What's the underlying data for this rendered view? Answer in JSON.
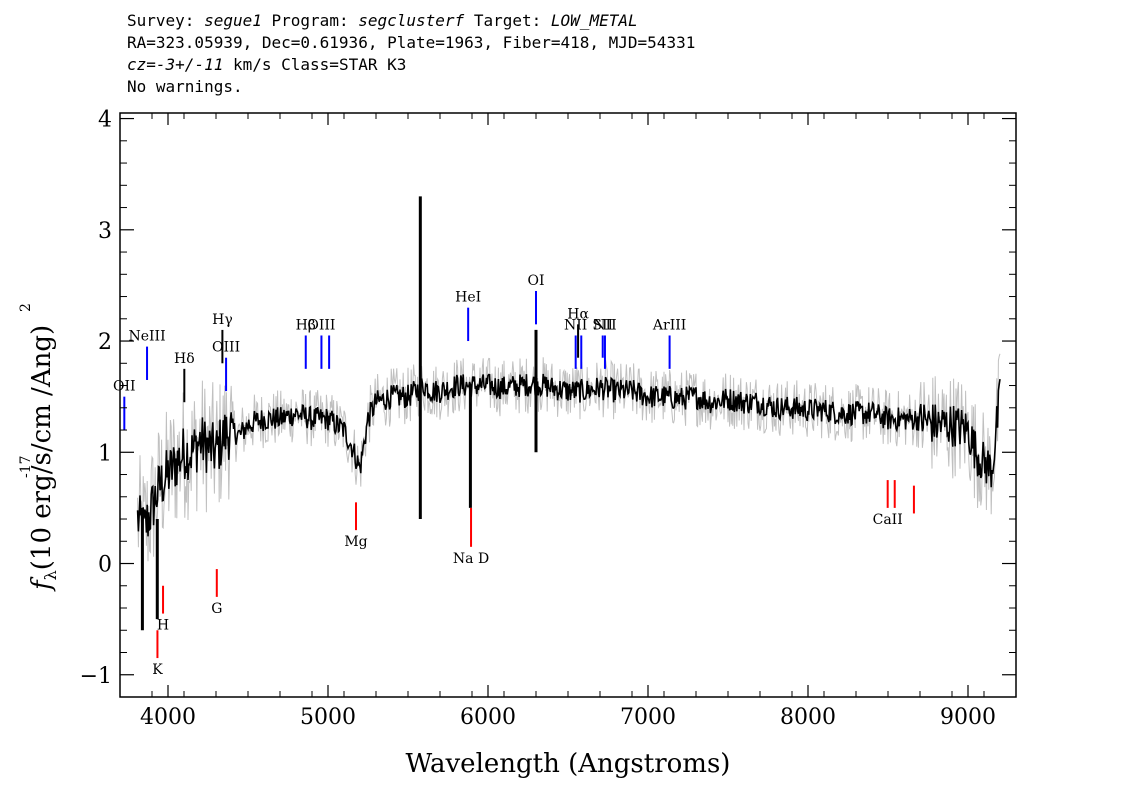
{
  "header": {
    "survey_label": "Survey:",
    "survey": "segue1",
    "program_label": "Program:",
    "program": "segclusterf",
    "target_label": "Target:",
    "target": "LOW_METAL",
    "line2": "RA=323.05939, Dec=0.61936, Plate=1963, Fiber=418, MJD=54331",
    "cz_label": "cz=",
    "cz_value": "-3+/-11",
    "cz_rest": " km/s Class=STAR K3",
    "warnings": "No warnings."
  },
  "chart_data": {
    "type": "line",
    "xlabel": "Wavelength (Angstroms)",
    "ylabel": "(10  erg/s/cm /Ang)",
    "ylabel_symbol": "f",
    "ylabel_sub": "λ",
    "ylabel_exp": "-17",
    "ylabel_exp2": "2",
    "xlim": [
      3700,
      9300
    ],
    "ylim": [
      -1.2,
      4.05
    ],
    "xticks": [
      4000,
      5000,
      6000,
      7000,
      8000,
      9000
    ],
    "xtick_labels": [
      "4000",
      "5000",
      "6000",
      "7000",
      "8000",
      "9000"
    ],
    "yticks": [
      -1,
      0,
      1,
      2,
      3,
      4
    ],
    "ytick_labels": [
      "−1",
      "0",
      "1",
      "2",
      "3",
      "4"
    ],
    "grid": false,
    "colors": {
      "spectrum": "#000000",
      "error": "#c0c0c0",
      "emission": "#0000ff",
      "absorption": "#ff0000"
    },
    "series": [
      {
        "values_kind": "flux",
        "x": [
          3810,
          3850,
          3900,
          3950,
          4000,
          4050,
          4100,
          4150,
          4200,
          4250,
          4300,
          4350,
          4400,
          4450,
          4500,
          4600,
          4700,
          4800,
          4900,
          5000,
          5100,
          5150,
          5200,
          5250,
          5300,
          5400,
          5500,
          5550,
          5600,
          5650,
          5700,
          5800,
          5900,
          6000,
          6100,
          6200,
          6300,
          6400,
          6500,
          6600,
          6700,
          6800,
          6900,
          7000,
          7100,
          7200,
          7300,
          7400,
          7500,
          7600,
          7700,
          7800,
          7900,
          8000,
          8100,
          8200,
          8300,
          8400,
          8500,
          8600,
          8700,
          8800,
          8900,
          9000,
          9050,
          9100,
          9150,
          9200
        ],
        "y": [
          0.4,
          0.3,
          0.5,
          0.7,
          0.8,
          0.9,
          1.0,
          1.0,
          1.1,
          1.05,
          1.0,
          1.15,
          1.2,
          1.15,
          1.25,
          1.3,
          1.3,
          1.35,
          1.3,
          1.3,
          1.2,
          1.05,
          0.85,
          1.3,
          1.45,
          1.5,
          1.5,
          1.55,
          1.6,
          1.55,
          1.55,
          1.6,
          1.6,
          1.6,
          1.58,
          1.6,
          1.62,
          1.58,
          1.55,
          1.55,
          1.58,
          1.55,
          1.55,
          1.5,
          1.5,
          1.48,
          1.5,
          1.45,
          1.48,
          1.45,
          1.45,
          1.4,
          1.4,
          1.38,
          1.38,
          1.35,
          1.35,
          1.35,
          1.3,
          1.3,
          1.3,
          1.25,
          1.25,
          1.2,
          1.0,
          0.9,
          0.85,
          1.5
        ]
      }
    ],
    "spikes": [
      {
        "x": 5577,
        "y_min": 0.4,
        "y_max": 3.3
      },
      {
        "x": 5890,
        "y_min": 0.5,
        "y_max": 1.6
      },
      {
        "x": 6300,
        "y_min": 1.0,
        "y_max": 2.1
      },
      {
        "x": 3840,
        "y_min": -0.6,
        "y_max": 0.5
      },
      {
        "x": 3933,
        "y_min": -0.5,
        "y_max": 0.4
      }
    ],
    "lines": [
      {
        "label": "OII",
        "x": 3727,
        "y0": 1.2,
        "y1": 1.5,
        "kind": "emission"
      },
      {
        "label": "NeIII",
        "x": 3869,
        "y0": 1.65,
        "y1": 1.95,
        "kind": "emission"
      },
      {
        "label": "Hδ",
        "x": 4102,
        "y0": 1.45,
        "y1": 1.75,
        "kind": "emission",
        "label_black": true
      },
      {
        "label": "Hγ",
        "x": 4340,
        "y0": 1.8,
        "y1": 2.1,
        "kind": "emission",
        "label_black": true
      },
      {
        "label": "OIII",
        "x": 4363,
        "y0": 1.55,
        "y1": 1.85,
        "kind": "emission"
      },
      {
        "label": "Hβ",
        "x": 4861,
        "y0": 1.75,
        "y1": 2.05,
        "kind": "emission"
      },
      {
        "label": "OIII",
        "x": 4959,
        "y0": 1.75,
        "y1": 2.05,
        "kind": "emission"
      },
      {
        "label": "",
        "x": 5007,
        "y0": 1.75,
        "y1": 2.05,
        "kind": "emission"
      },
      {
        "label": "HeI",
        "x": 5876,
        "y0": 2.0,
        "y1": 2.3,
        "kind": "emission"
      },
      {
        "label": "OI",
        "x": 6300,
        "y0": 2.15,
        "y1": 2.45,
        "kind": "emission"
      },
      {
        "label": "NII",
        "x": 6548,
        "y0": 1.75,
        "y1": 2.05,
        "kind": "emission"
      },
      {
        "label": "Hα",
        "x": 6563,
        "y0": 1.85,
        "y1": 2.15,
        "kind": "emission",
        "label_black": true
      },
      {
        "label": "",
        "x": 6583,
        "y0": 1.75,
        "y1": 2.05,
        "kind": "emission"
      },
      {
        "label": "SII",
        "x": 6717,
        "y0": 1.85,
        "y1": 2.05,
        "kind": "emission"
      },
      {
        "label": "NII",
        "x": 6731,
        "y0": 1.75,
        "y1": 2.05,
        "kind": "emission"
      },
      {
        "label": "ArIII",
        "x": 7135,
        "y0": 1.75,
        "y1": 2.05,
        "kind": "emission"
      },
      {
        "label": "K",
        "x": 3934,
        "y0": -0.85,
        "y1": -0.6,
        "kind": "absorption"
      },
      {
        "label": "H",
        "x": 3969,
        "y0": -0.45,
        "y1": -0.2,
        "kind": "absorption"
      },
      {
        "label": "G",
        "x": 4305,
        "y0": -0.3,
        "y1": -0.05,
        "kind": "absorption"
      },
      {
        "label": "Mg",
        "x": 5175,
        "y0": 0.3,
        "y1": 0.55,
        "kind": "absorption"
      },
      {
        "label": "Na D",
        "x": 5894,
        "y0": 0.15,
        "y1": 0.5,
        "kind": "absorption"
      },
      {
        "label": "CaII",
        "x": 8498,
        "y0": 0.5,
        "y1": 0.75,
        "kind": "absorption"
      },
      {
        "label": "",
        "x": 8542,
        "y0": 0.5,
        "y1": 0.75,
        "kind": "absorption"
      },
      {
        "label": "",
        "x": 8662,
        "y0": 0.45,
        "y1": 0.7,
        "kind": "absorption"
      }
    ]
  }
}
